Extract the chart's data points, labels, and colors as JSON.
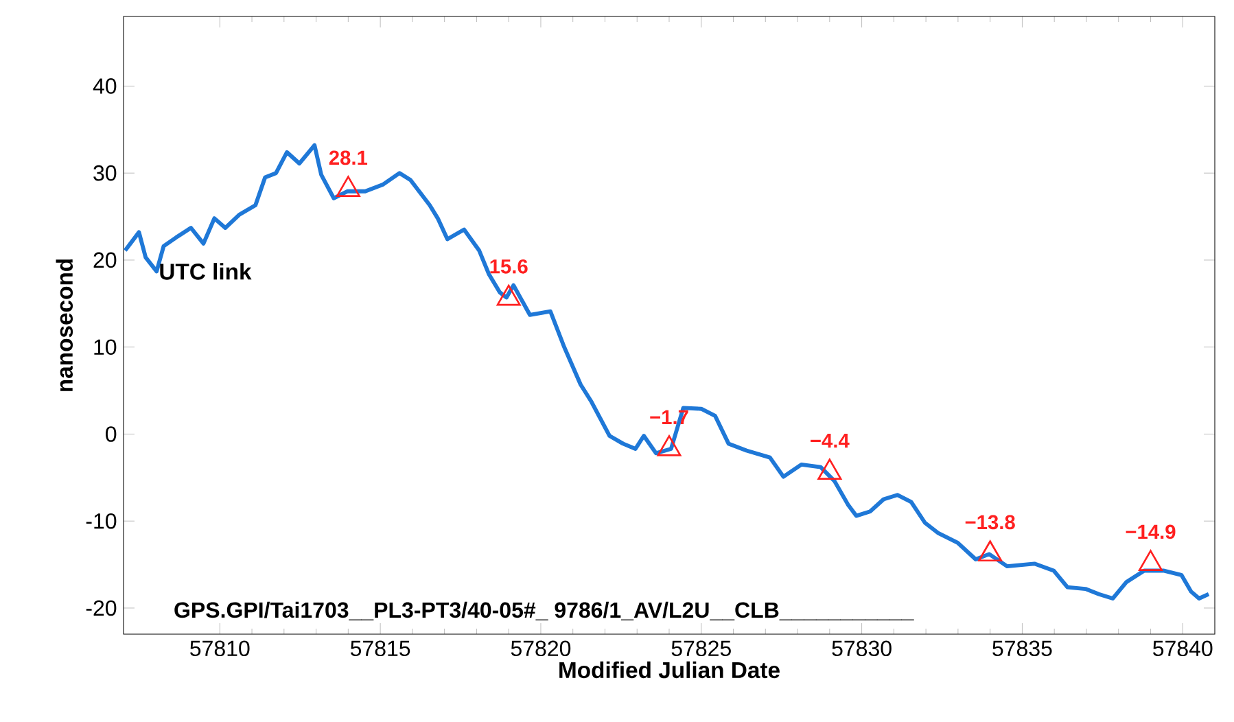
{
  "chart_data": {
    "type": "line",
    "xlabel": "Modified Julian Date",
    "ylabel": "nanosecond",
    "xlim": [
      57807,
      57841
    ],
    "ylim": [
      -23,
      48
    ],
    "xticks": [
      57810,
      57815,
      57820,
      57825,
      57830,
      57835,
      57840
    ],
    "yticks": [
      -20,
      -10,
      0,
      10,
      20,
      30,
      40
    ],
    "grid": false,
    "annotations": [
      "GPS.GPI/Tai1703__PL3-PT3/40-05#_  9786/1_AV/L2U__CLB___________"
    ],
    "series": [
      {
        "name": "UTC link",
        "color": "#1f78d7",
        "marker": "none",
        "line_style": "solid",
        "x": [
          57807.05,
          57807.48,
          57807.69,
          57808.03,
          57808.25,
          57808.68,
          57809.1,
          57809.49,
          57809.83,
          57810.17,
          57810.6,
          57811.11,
          57811.41,
          57811.75,
          57812.09,
          57812.48,
          57812.95,
          57813.16,
          57813.55,
          57813.97,
          57814.53,
          57815.09,
          57815.6,
          57815.94,
          57816.54,
          57816.79,
          57817.09,
          57817.61,
          57818.08,
          57818.38,
          57818.72,
          57818.93,
          57819.15,
          57819.66,
          57820.3,
          57820.73,
          57821.24,
          57821.58,
          57822.14,
          57822.56,
          57822.95,
          57823.21,
          57823.59,
          57824.06,
          57824.44,
          57825.0,
          57825.43,
          57825.85,
          57826.41,
          57827.14,
          57827.56,
          57828.12,
          57828.72,
          57829.15,
          57829.57,
          57829.83,
          57830.26,
          57830.68,
          57831.11,
          57831.54,
          57831.97,
          57832.39,
          57832.99,
          57833.55,
          57833.97,
          57834.53,
          57835.38,
          57835.98,
          57836.41,
          57836.97,
          57837.39,
          57837.82,
          57838.25,
          57838.8,
          57839.4,
          57839.96,
          57840.26,
          57840.51,
          57840.81
        ],
        "values": [
          21.1,
          23.2,
          20.3,
          18.7,
          21.6,
          22.7,
          23.7,
          21.9,
          24.8,
          23.7,
          25.2,
          26.3,
          29.5,
          30.0,
          32.4,
          31.1,
          33.2,
          29.8,
          27.1,
          27.9,
          27.9,
          28.7,
          30.0,
          29.2,
          26.3,
          24.8,
          22.4,
          23.5,
          21.1,
          18.4,
          16.3,
          15.7,
          17.1,
          13.7,
          14.1,
          10.0,
          5.7,
          3.7,
          -0.2,
          -1.1,
          -1.7,
          -0.2,
          -2.2,
          -1.7,
          3.0,
          2.9,
          2.1,
          -1.1,
          -1.9,
          -2.7,
          -4.9,
          -3.5,
          -3.8,
          -5.4,
          -8.1,
          -9.4,
          -8.9,
          -7.5,
          -7.0,
          -7.8,
          -10.2,
          -11.4,
          -12.5,
          -14.4,
          -13.8,
          -15.2,
          -14.9,
          -15.7,
          -17.6,
          -17.8,
          -18.4,
          -18.9,
          -17.0,
          -15.7,
          -15.7,
          -16.2,
          -18.1,
          -18.9,
          -18.4
        ]
      },
      {
        "type": "scatter",
        "color": "#ff2020",
        "marker": "triangle",
        "x": [
          57814,
          57819,
          57824,
          57829,
          57834,
          57839
        ],
        "values": [
          28.1,
          15.6,
          -1.7,
          -4.4,
          -13.8,
          -14.9
        ],
        "value_labels": [
          "28.1",
          "15.6",
          "−1.7",
          "−4.4",
          "−13.8",
          "−14.9"
        ]
      }
    ]
  }
}
